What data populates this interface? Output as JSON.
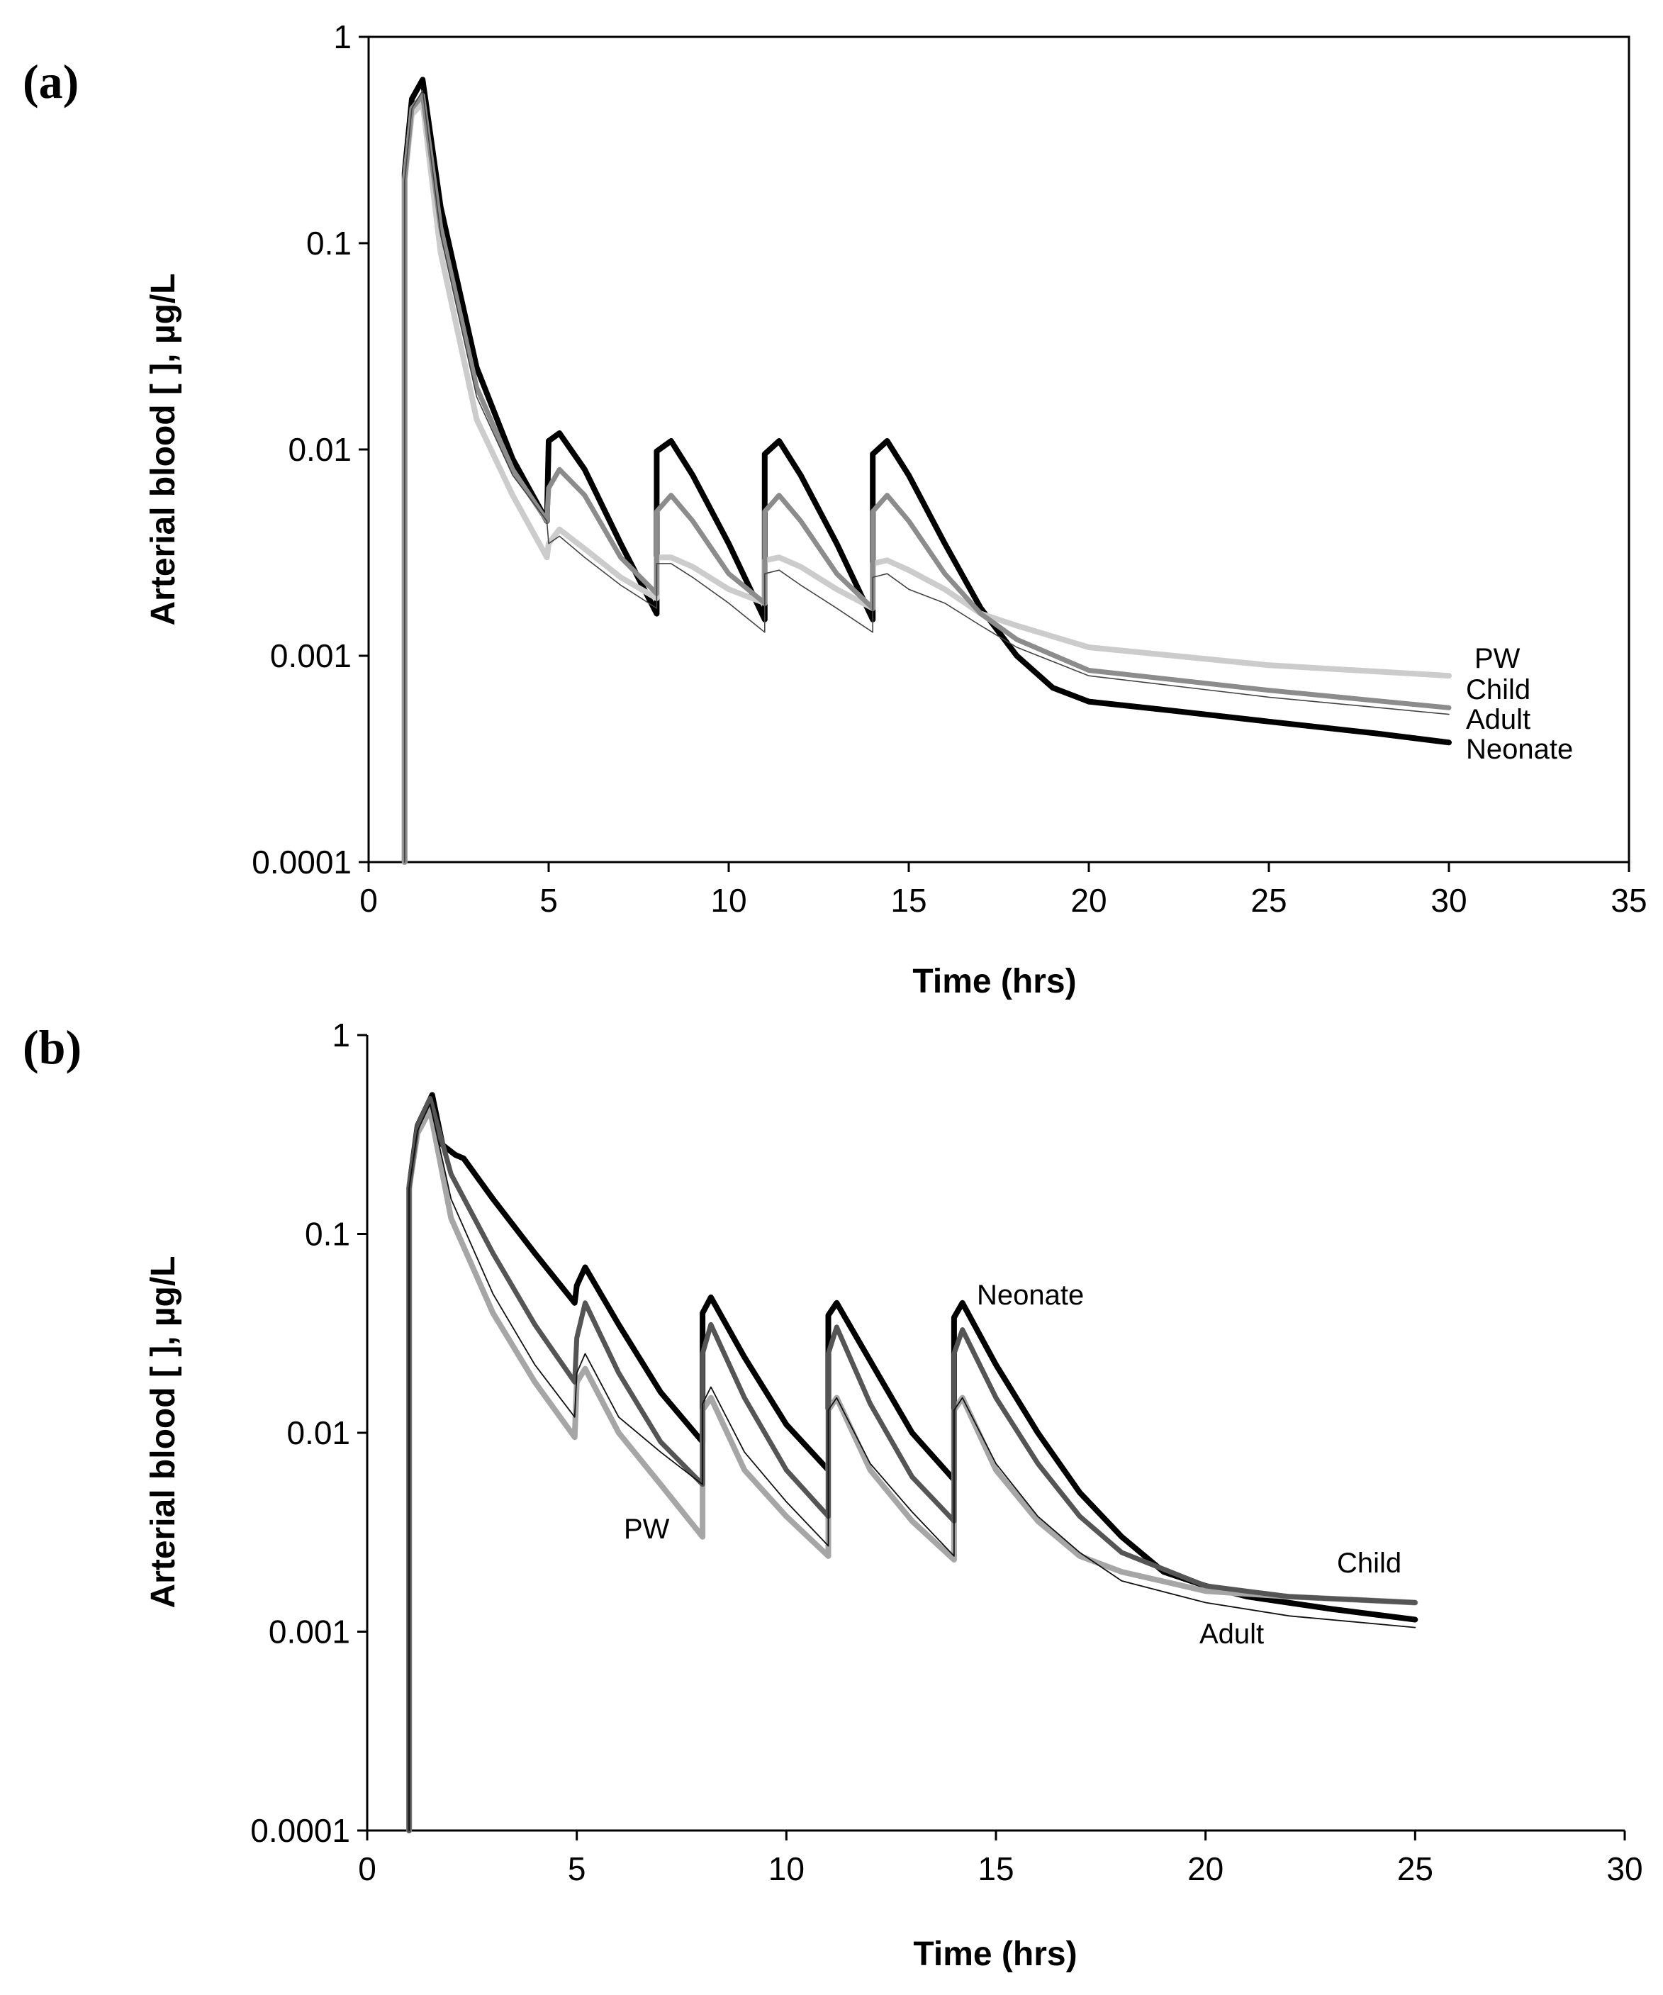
{
  "chart_data": [
    {
      "panel": "(a)",
      "type": "line",
      "xlabel": "Time (hrs)",
      "ylabel": "Arterial blood [ ], µg/L",
      "xlim": [
        0,
        35
      ],
      "ylim": [
        0.0001,
        1
      ],
      "yscale": "log",
      "xticks": [
        "0",
        "5",
        "10",
        "15",
        "20",
        "25",
        "30",
        "35"
      ],
      "yticks": [
        "0.0001",
        "0.001",
        "0.01",
        "0.1",
        "1"
      ],
      "frame": "box",
      "series": [
        {
          "name": "Neonate",
          "color": "#000000",
          "stroke": 8,
          "x": [
            1,
            1.2,
            1.5,
            2,
            3,
            4,
            4.95,
            5.0,
            5.3,
            6,
            7,
            8,
            8.0,
            8.4,
            9,
            10,
            11,
            11.0,
            11.4,
            12,
            13,
            14,
            14.0,
            14.4,
            15,
            16,
            17,
            18,
            19,
            20,
            22,
            25,
            28,
            30
          ],
          "y": [
            0.22,
            0.5,
            0.62,
            0.15,
            0.025,
            0.009,
            0.0045,
            0.011,
            0.012,
            0.008,
            0.0035,
            0.0016,
            0.0098,
            0.011,
            0.0075,
            0.0035,
            0.0015,
            0.0095,
            0.011,
            0.0075,
            0.0035,
            0.0015,
            0.0095,
            0.011,
            0.0075,
            0.0035,
            0.0017,
            0.001,
            0.0007,
            0.0006,
            0.00055,
            0.00048,
            0.00042,
            0.00038
          ]
        },
        {
          "name": "Child",
          "color": "#8c8c8c",
          "stroke": 7,
          "x": [
            1,
            1.2,
            1.5,
            2,
            3,
            4,
            4.95,
            5.0,
            5.3,
            6,
            7,
            8,
            8.0,
            8.4,
            9,
            10,
            11,
            11.0,
            11.4,
            12,
            13,
            14,
            14.0,
            14.4,
            15,
            16,
            17,
            18,
            20,
            25,
            30
          ],
          "y": [
            0.2,
            0.45,
            0.52,
            0.12,
            0.02,
            0.008,
            0.0045,
            0.0065,
            0.008,
            0.006,
            0.003,
            0.002,
            0.005,
            0.006,
            0.0045,
            0.0025,
            0.0018,
            0.005,
            0.006,
            0.0045,
            0.0025,
            0.0017,
            0.005,
            0.006,
            0.0045,
            0.0025,
            0.0016,
            0.0012,
            0.00085,
            0.00068,
            0.00056
          ]
        },
        {
          "name": "Adult",
          "color": "#444444",
          "stroke": 1.6,
          "x": [
            1,
            1.2,
            1.5,
            2,
            3,
            4,
            4.95,
            5.0,
            5.3,
            6,
            7,
            8,
            8.0,
            8.4,
            9,
            10,
            11,
            11.0,
            11.4,
            12,
            13,
            14,
            14.0,
            14.4,
            15,
            16,
            17,
            18,
            20,
            25,
            30
          ],
          "y": [
            0.2,
            0.45,
            0.55,
            0.11,
            0.018,
            0.0075,
            0.0045,
            0.0035,
            0.0038,
            0.003,
            0.0022,
            0.0017,
            0.0028,
            0.0028,
            0.0024,
            0.0018,
            0.0013,
            0.0025,
            0.0026,
            0.0022,
            0.0017,
            0.0013,
            0.0024,
            0.0025,
            0.0021,
            0.0018,
            0.0014,
            0.0011,
            0.0008,
            0.00063,
            0.00052
          ]
        },
        {
          "name": "PW",
          "color": "#cccccc",
          "stroke": 8,
          "x": [
            1,
            1.2,
            1.5,
            2,
            3,
            4,
            4.95,
            5.0,
            5.3,
            6,
            7,
            8,
            8.0,
            8.4,
            9,
            10,
            11,
            11.0,
            11.4,
            12,
            13,
            14,
            14.0,
            14.4,
            15,
            16,
            17,
            18,
            20,
            25,
            30
          ],
          "y": [
            0.2,
            0.42,
            0.48,
            0.09,
            0.014,
            0.006,
            0.003,
            0.0035,
            0.0041,
            0.0033,
            0.0024,
            0.0019,
            0.003,
            0.003,
            0.0027,
            0.0021,
            0.0018,
            0.0029,
            0.003,
            0.0027,
            0.0021,
            0.0017,
            0.0028,
            0.0029,
            0.0026,
            0.0021,
            0.0016,
            0.0014,
            0.0011,
            0.0009,
            0.0008
          ]
        }
      ],
      "legend": [
        "PW",
        "Child",
        "Adult",
        "Neonate"
      ]
    },
    {
      "panel": "(b)",
      "type": "line",
      "xlabel": "Time (hrs)",
      "ylabel": "Arterial blood [ ], µg/L",
      "xlim": [
        0,
        30
      ],
      "ylim": [
        0.0001,
        1
      ],
      "yscale": "log",
      "xticks": [
        "0",
        "5",
        "10",
        "15",
        "20",
        "25",
        "30"
      ],
      "yticks": [
        "0.0001",
        "0.001",
        "0.01",
        "0.1",
        "1"
      ],
      "frame": "axes",
      "series": [
        {
          "name": "Neonate",
          "color": "#000000",
          "stroke": 8,
          "x": [
            1,
            1.2,
            1.55,
            1.8,
            2.1,
            2.3,
            3,
            4,
            4.95,
            5.0,
            5.2,
            6,
            7,
            8,
            8.0,
            8.2,
            9,
            10,
            11,
            11.0,
            11.2,
            12,
            13,
            14,
            14.0,
            14.2,
            15,
            16,
            17,
            18,
            19,
            20,
            21,
            23,
            25
          ],
          "y": [
            0.17,
            0.35,
            0.5,
            0.28,
            0.25,
            0.24,
            0.15,
            0.08,
            0.045,
            0.055,
            0.068,
            0.035,
            0.016,
            0.009,
            0.04,
            0.048,
            0.024,
            0.011,
            0.0065,
            0.039,
            0.045,
            0.023,
            0.01,
            0.0058,
            0.038,
            0.045,
            0.022,
            0.01,
            0.005,
            0.003,
            0.002,
            0.0017,
            0.0015,
            0.0013,
            0.00115
          ]
        },
        {
          "name": "Child",
          "color": "#555555",
          "stroke": 7,
          "x": [
            1,
            1.2,
            1.5,
            2,
            3,
            4,
            4.95,
            5.0,
            5.2,
            6,
            7,
            8,
            8.0,
            8.2,
            9,
            10,
            11,
            11.0,
            11.2,
            12,
            13,
            14,
            14.0,
            14.2,
            15,
            16,
            17,
            18,
            20,
            22,
            25
          ],
          "y": [
            0.17,
            0.35,
            0.48,
            0.2,
            0.08,
            0.035,
            0.018,
            0.03,
            0.045,
            0.02,
            0.009,
            0.0055,
            0.025,
            0.035,
            0.015,
            0.0065,
            0.0038,
            0.025,
            0.034,
            0.014,
            0.006,
            0.0036,
            0.025,
            0.033,
            0.015,
            0.007,
            0.0038,
            0.0025,
            0.0017,
            0.0015,
            0.0014
          ]
        },
        {
          "name": "Adult",
          "color": "#111111",
          "stroke": 1.8,
          "x": [
            1,
            1.2,
            1.5,
            2,
            3,
            4,
            4.95,
            5.0,
            5.2,
            6,
            7,
            8,
            8.0,
            8.2,
            9,
            10,
            11,
            11.0,
            11.2,
            12,
            13,
            14,
            14.0,
            14.2,
            15,
            16,
            17,
            18,
            20,
            22,
            25
          ],
          "y": [
            0.17,
            0.33,
            0.45,
            0.15,
            0.05,
            0.022,
            0.012,
            0.02,
            0.025,
            0.012,
            0.008,
            0.0055,
            0.014,
            0.017,
            0.008,
            0.0045,
            0.0027,
            0.013,
            0.015,
            0.007,
            0.004,
            0.0024,
            0.013,
            0.015,
            0.007,
            0.0038,
            0.0025,
            0.0018,
            0.0014,
            0.0012,
            0.00105
          ]
        },
        {
          "name": "PW",
          "color": "#a6a6a6",
          "stroke": 8,
          "x": [
            1,
            1.2,
            1.5,
            2,
            3,
            4,
            4.95,
            5.0,
            5.2,
            6,
            7,
            8,
            8.0,
            8.2,
            9,
            10,
            11,
            11.0,
            11.2,
            12,
            13,
            14,
            14.0,
            14.2,
            15,
            16,
            17,
            18,
            20,
            22,
            25
          ],
          "y": [
            0.17,
            0.32,
            0.42,
            0.12,
            0.04,
            0.018,
            0.0095,
            0.018,
            0.021,
            0.01,
            0.0055,
            0.003,
            0.013,
            0.015,
            0.0065,
            0.0038,
            0.0024,
            0.013,
            0.015,
            0.0065,
            0.0036,
            0.0023,
            0.013,
            0.015,
            0.0065,
            0.0036,
            0.0024,
            0.002,
            0.0016,
            0.0015,
            0.0014
          ]
        }
      ],
      "labels": [
        "Neonate",
        "PW",
        "Child",
        "Adult"
      ]
    }
  ]
}
